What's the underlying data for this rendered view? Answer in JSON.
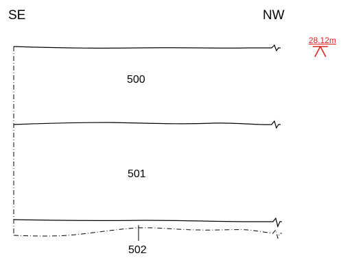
{
  "orientation": {
    "left": "SE",
    "right": "NW"
  },
  "level_marker": {
    "value": "28.12m",
    "color": "#e0201b"
  },
  "layers": [
    {
      "id": "500"
    },
    {
      "id": "501"
    },
    {
      "id": "502"
    }
  ],
  "colors": {
    "line": "#000000",
    "marker": "#e0201b"
  }
}
